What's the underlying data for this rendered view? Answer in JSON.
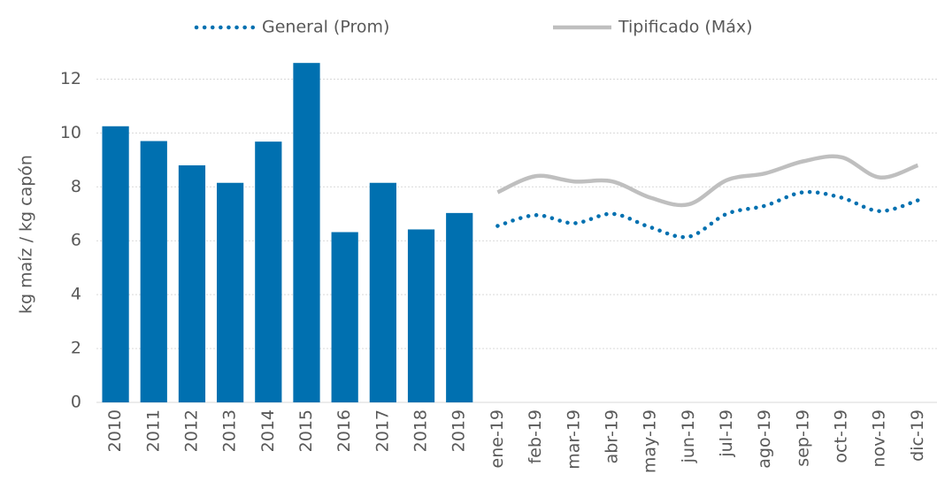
{
  "chart_data": {
    "type": "bar-line",
    "ylabel": "kg maíz / kg capón",
    "categories": [
      "2010",
      "2011",
      "2012",
      "2013",
      "2014",
      "2015",
      "2016",
      "2017",
      "2018",
      "2019",
      "ene-19",
      "feb-19",
      "mar-19",
      "abr-19",
      "may-19",
      "jun-19",
      "jul-19",
      "ago-19",
      "sep-19",
      "oct-19",
      "nov-19",
      "dic-19"
    ],
    "values": [
      10.25,
      9.7,
      8.8,
      8.15,
      9.68,
      12.6,
      6.32,
      8.15,
      6.42,
      7.03,
      null,
      null,
      null,
      null,
      null,
      null,
      null,
      null,
      null,
      null,
      null,
      null
    ],
    "color": "#0070b0",
    "series": [
      {
        "name": "General (Prom)",
        "color": "#0070b0",
        "style": "dotted",
        "values": [
          null,
          null,
          null,
          null,
          null,
          null,
          null,
          null,
          null,
          null,
          6.55,
          6.95,
          6.65,
          7.0,
          6.5,
          6.15,
          7.0,
          7.3,
          7.8,
          7.6,
          7.1,
          7.5
        ]
      },
      {
        "name": "Tipificado (Máx)",
        "color": "#bfbfbf",
        "style": "solid",
        "values": [
          null,
          null,
          null,
          null,
          null,
          null,
          null,
          null,
          null,
          null,
          7.8,
          8.4,
          8.2,
          8.2,
          7.6,
          7.35,
          8.25,
          8.5,
          8.95,
          9.1,
          8.35,
          8.8
        ]
      }
    ],
    "ylim": [
      0,
      13
    ],
    "yticks": [
      0,
      2,
      4,
      6,
      8,
      10,
      12
    ],
    "grid": true,
    "legend": "top"
  }
}
